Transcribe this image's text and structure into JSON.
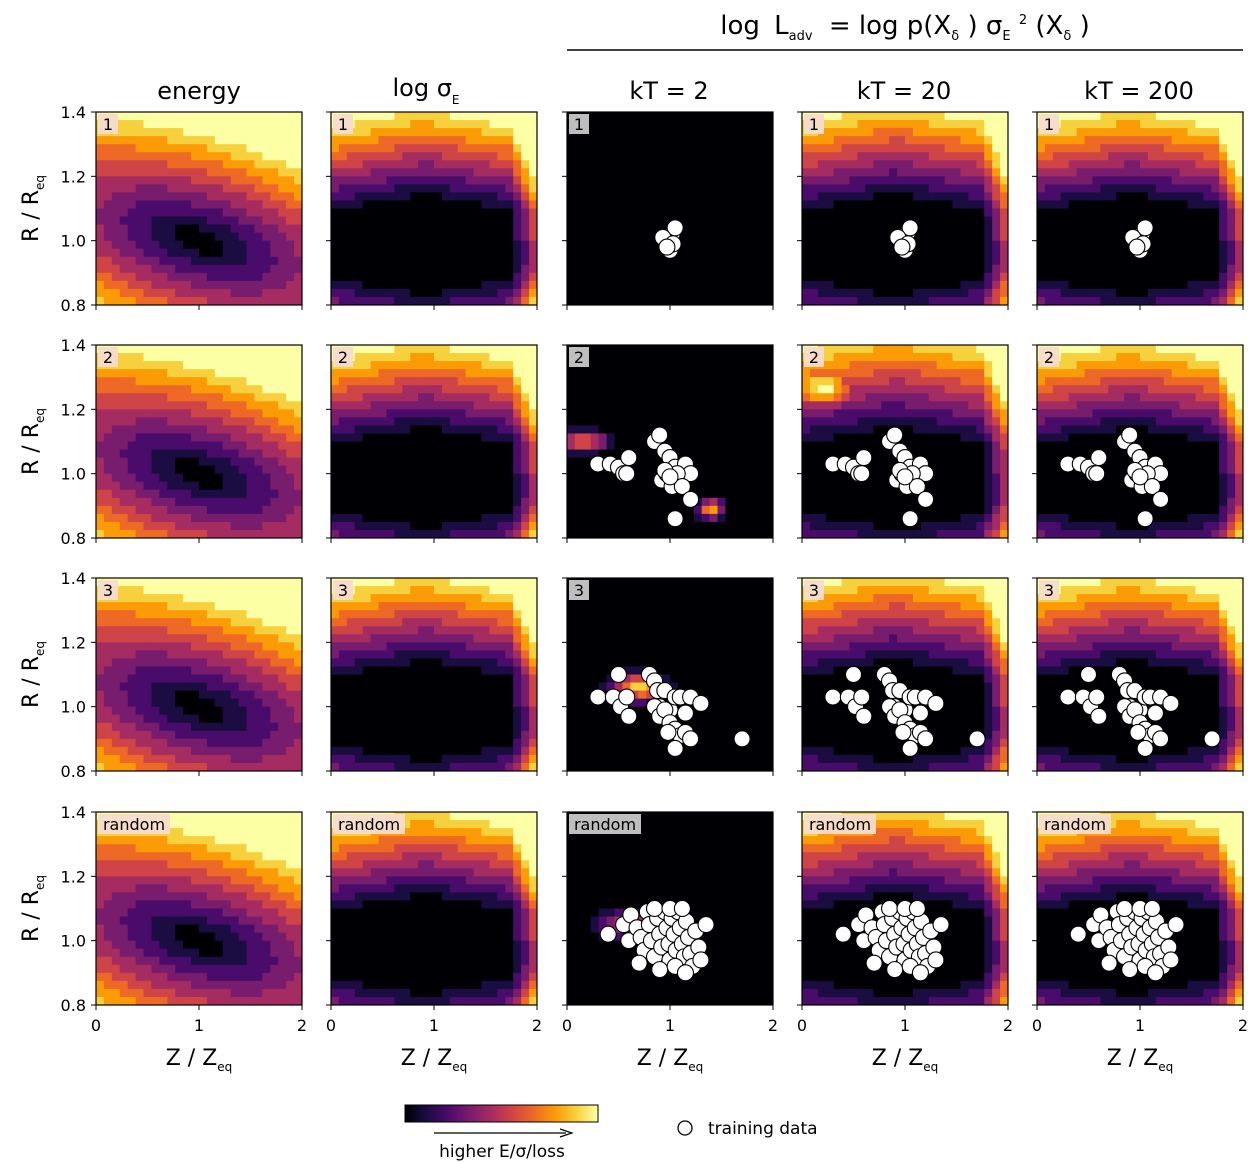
{
  "header": {
    "group_title": "log L_adv = log p(X_δ) σ_E²(X_δ)",
    "parts": {
      "log": "log",
      "L": "L",
      "L_sub": "adv",
      "eq": "= log p(X",
      "delta": "δ",
      "mid": ") σ",
      "sigma_sub": "E",
      "sq": "2",
      "open": "(X",
      "close": ")"
    }
  },
  "column_titles": [
    "energy",
    "log σ",
    "kT = 2",
    "kT = 20",
    "kT = 200"
  ],
  "column_title_sub": {
    "1": "E"
  },
  "row_tags": [
    "1",
    "2",
    "3",
    "random"
  ],
  "axes": {
    "ylabel": "R / R",
    "ylabel_sub": "eq",
    "xlabel": "Z / Z",
    "xlabel_sub": "eq",
    "yticks": [
      "1.4",
      "1.2",
      "1.0",
      "0.8"
    ],
    "xticks": [
      "0",
      "1",
      "2"
    ]
  },
  "colorbar": {
    "label": "higher E/σ/loss",
    "colors": [
      "#000004",
      "#1b0c41",
      "#4a0c6b",
      "#781c6d",
      "#a52c60",
      "#cf4446",
      "#ed6925",
      "#fb9b06",
      "#f7d13d",
      "#fcffa4"
    ]
  },
  "legend": {
    "label": "training data",
    "marker": "open-circle"
  },
  "chart_data": {
    "type": "heatmap",
    "grid": "5 columns x 4 rows of filled contour panels",
    "xlabel": "Z / Z_eq",
    "ylabel": "R / R_eq",
    "xlim": [
      0,
      2
    ],
    "ylim": [
      0.8,
      1.4
    ],
    "colormap": "inferno",
    "columns": [
      "energy",
      "log σ_E",
      "kT = 2",
      "kT = 20",
      "kT = 200"
    ],
    "rows": [
      "1",
      "2",
      "3",
      "random"
    ],
    "training_data": {
      "1": [
        [
          0.98,
          1.0
        ],
        [
          1.02,
          1.02
        ],
        [
          1.05,
          1.04
        ],
        [
          0.95,
          1.0
        ],
        [
          1.0,
          0.97
        ],
        [
          0.93,
          1.01
        ],
        [
          1.03,
          0.99
        ],
        [
          0.97,
          0.98
        ]
      ],
      "2": [
        [
          0.3,
          1.03
        ],
        [
          0.42,
          1.03
        ],
        [
          0.5,
          1.02
        ],
        [
          0.55,
          1.0
        ],
        [
          0.6,
          1.05
        ],
        [
          0.58,
          1.0
        ],
        [
          0.85,
          1.1
        ],
        [
          0.9,
          1.12
        ],
        [
          0.95,
          1.07
        ],
        [
          1.0,
          1.05
        ],
        [
          1.05,
          1.02
        ],
        [
          1.1,
          1.0
        ],
        [
          1.15,
          1.03
        ],
        [
          1.2,
          1.0
        ],
        [
          0.92,
          0.98
        ],
        [
          0.97,
          1.0
        ],
        [
          1.02,
          0.96
        ],
        [
          1.07,
          1.0
        ],
        [
          1.12,
          0.96
        ],
        [
          1.2,
          0.92
        ],
        [
          1.05,
          0.86
        ],
        [
          0.95,
          1.01
        ],
        [
          1.0,
          0.99
        ]
      ],
      "3": [
        [
          0.3,
          1.03
        ],
        [
          0.45,
          1.03
        ],
        [
          0.5,
          1.1
        ],
        [
          0.52,
          1.0
        ],
        [
          0.58,
          1.03
        ],
        [
          0.6,
          0.97
        ],
        [
          0.8,
          1.1
        ],
        [
          0.85,
          1.08
        ],
        [
          0.88,
          1.05
        ],
        [
          0.9,
          1.0
        ],
        [
          0.95,
          1.05
        ],
        [
          1.0,
          0.99
        ],
        [
          1.05,
          1.03
        ],
        [
          1.1,
          1.03
        ],
        [
          1.15,
          0.98
        ],
        [
          1.2,
          1.03
        ],
        [
          1.3,
          1.01
        ],
        [
          0.85,
          1.0
        ],
        [
          0.9,
          0.97
        ],
        [
          0.95,
          0.99
        ],
        [
          1.0,
          0.95
        ],
        [
          1.05,
          0.93
        ],
        [
          1.1,
          0.91
        ],
        [
          1.15,
          0.92
        ],
        [
          1.2,
          0.9
        ],
        [
          1.05,
          0.87
        ],
        [
          0.98,
          0.92
        ],
        [
          1.7,
          0.9
        ]
      ],
      "random": [
        [
          0.4,
          1.02
        ],
        [
          0.55,
          1.05
        ],
        [
          0.6,
          1.0
        ],
        [
          0.62,
          1.08
        ],
        [
          0.68,
          1.04
        ],
        [
          0.72,
          1.01
        ],
        [
          0.75,
          0.97
        ],
        [
          0.78,
          1.09
        ],
        [
          0.8,
          1.05
        ],
        [
          0.82,
          1.0
        ],
        [
          0.85,
          0.95
        ],
        [
          0.88,
          1.07
        ],
        [
          0.9,
          1.02
        ],
        [
          0.92,
          0.98
        ],
        [
          0.95,
          1.09
        ],
        [
          0.97,
          1.04
        ],
        [
          0.99,
          0.99
        ],
        [
          1.0,
          0.94
        ],
        [
          1.02,
          1.07
        ],
        [
          1.04,
          1.02
        ],
        [
          1.06,
          0.97
        ],
        [
          1.08,
          1.09
        ],
        [
          1.1,
          1.04
        ],
        [
          1.12,
          0.99
        ],
        [
          1.14,
          0.95
        ],
        [
          1.16,
          1.06
        ],
        [
          1.18,
          1.01
        ],
        [
          1.2,
          0.96
        ],
        [
          1.22,
          0.92
        ],
        [
          1.25,
          1.03
        ],
        [
          1.28,
          0.98
        ],
        [
          1.3,
          0.94
        ],
        [
          1.35,
          1.05
        ],
        [
          0.7,
          0.93
        ],
        [
          0.9,
          0.91
        ],
        [
          1.05,
          0.92
        ],
        [
          1.15,
          0.9
        ],
        [
          0.85,
          1.1
        ],
        [
          1.0,
          1.1
        ],
        [
          1.12,
          1.1
        ]
      ]
    }
  }
}
